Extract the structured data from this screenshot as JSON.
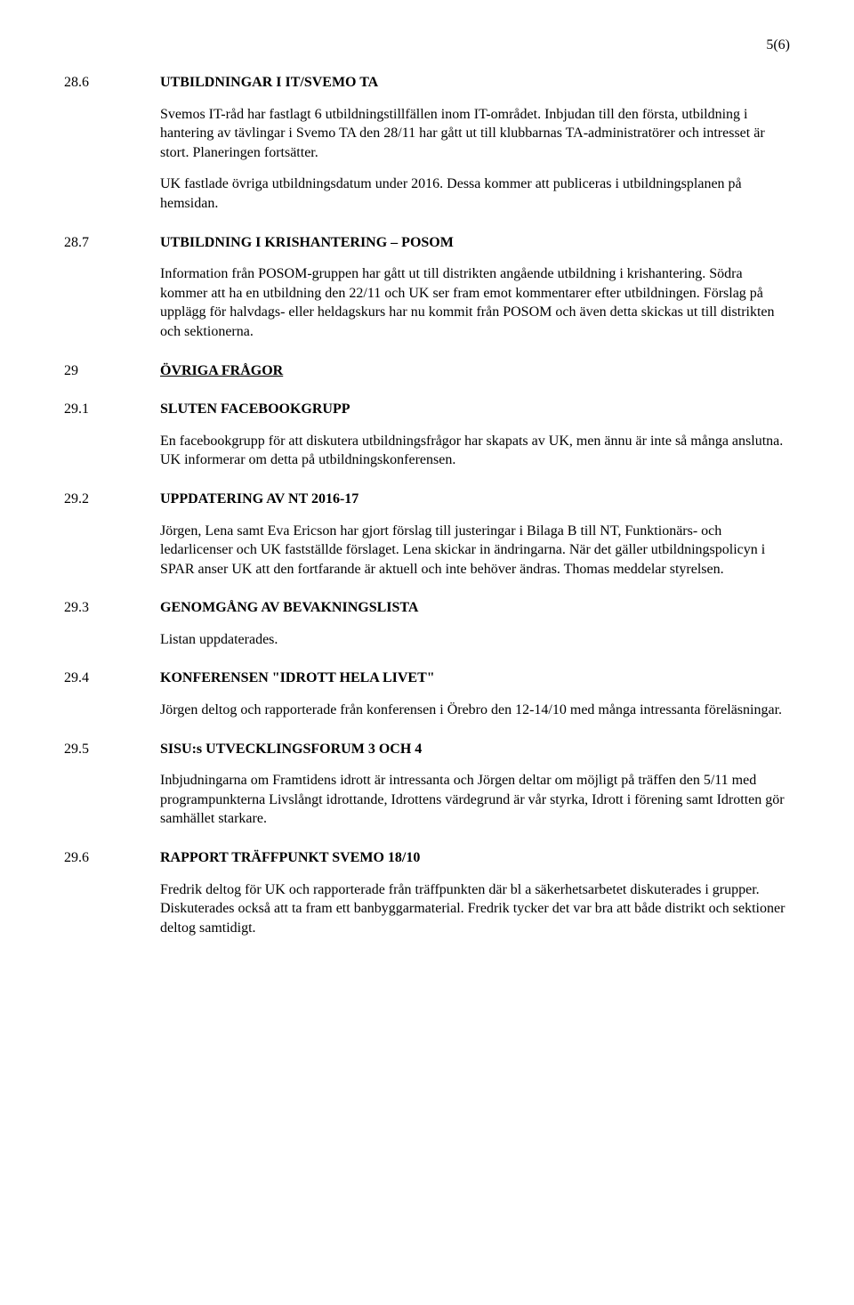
{
  "page_number": "5(6)",
  "sections": [
    {
      "num": "28.6",
      "heading_class": "heading-bold",
      "heading": "UTBILDNINGAR I IT/SVEMO TA",
      "paras": [
        "Svemos IT-råd har fastlagt 6 utbildningstillfällen inom IT-området. Inbjudan till den första, utbildning i hantering av tävlingar i Svemo TA den 28/11 har gått ut till klubbarnas TA-administratörer och intresset är stort. Planeringen fortsätter.",
        "UK fastlade övriga utbildningsdatum under 2016. Dessa kommer att publiceras i utbildningsplanen på hemsidan."
      ]
    },
    {
      "num": "28.7",
      "heading_class": "heading-bold",
      "heading": "UTBILDNING I KRISHANTERING – POSOM",
      "paras": [
        "Information från POSOM-gruppen har gått ut till distrikten angående utbildning i krishantering. Södra kommer att ha en utbildning den 22/11 och UK ser fram emot kommentarer efter utbildningen. Förslag på upplägg för halvdags- eller heldagskurs har nu kommit från POSOM och även detta skickas ut till distrikten och sektionerna."
      ]
    },
    {
      "num": "29",
      "heading_class": "heading-underline",
      "heading": "ÖVRIGA FRÅGOR",
      "paras": []
    },
    {
      "num": "29.1",
      "heading_class": "heading-bold",
      "heading": "SLUTEN FACEBOOKGRUPP",
      "paras": [
        "En facebookgrupp för att diskutera utbildningsfrågor har skapats av UK, men ännu är inte så många anslutna. UK informerar om detta på utbildningskonferensen."
      ]
    },
    {
      "num": "29.2",
      "heading_class": "heading-bold",
      "heading": "UPPDATERING AV NT 2016-17",
      "paras": [
        "Jörgen, Lena samt Eva Ericson har gjort förslag till justeringar i Bilaga B till NT, Funktionärs- och ledarlicenser och UK fastställde förslaget. Lena skickar in ändringarna. När det gäller utbildningspolicyn i SPAR anser UK att den fortfarande är aktuell och inte behöver ändras. Thomas meddelar styrelsen."
      ]
    },
    {
      "num": "29.3",
      "heading_class": "heading-bold",
      "heading": "GENOMGÅNG AV BEVAKNINGSLISTA",
      "paras": [
        "Listan uppdaterades."
      ]
    },
    {
      "num": "29.4",
      "heading_class": "heading-bold",
      "heading": "KONFERENSEN \"IDROTT HELA LIVET\"",
      "paras": [
        "Jörgen deltog och rapporterade från konferensen i Örebro den 12-14/10 med många intressanta föreläsningar."
      ]
    },
    {
      "num": "29.5",
      "heading_class": "heading-bold",
      "heading": "SISU:s UTVECKLINGSFORUM 3 OCH 4",
      "paras": [
        "Inbjudningarna om Framtidens idrott är intressanta och Jörgen deltar om möjligt på träffen den 5/11 med programpunkterna Livslångt idrottande, Idrottens värdegrund är vår styrka, Idrott i förening samt Idrotten gör samhället starkare."
      ]
    },
    {
      "num": "29.6",
      "heading_class": "heading-bold",
      "heading": "RAPPORT TRÄFFPUNKT SVEMO 18/10",
      "paras": [
        "Fredrik deltog för UK och rapporterade från träffpunkten där bl a säkerhetsarbetet diskuterades i grupper. Diskuterades också att ta fram ett banbyggarmaterial. Fredrik tycker det var bra att både distrikt och sektioner deltog samtidigt."
      ]
    }
  ]
}
